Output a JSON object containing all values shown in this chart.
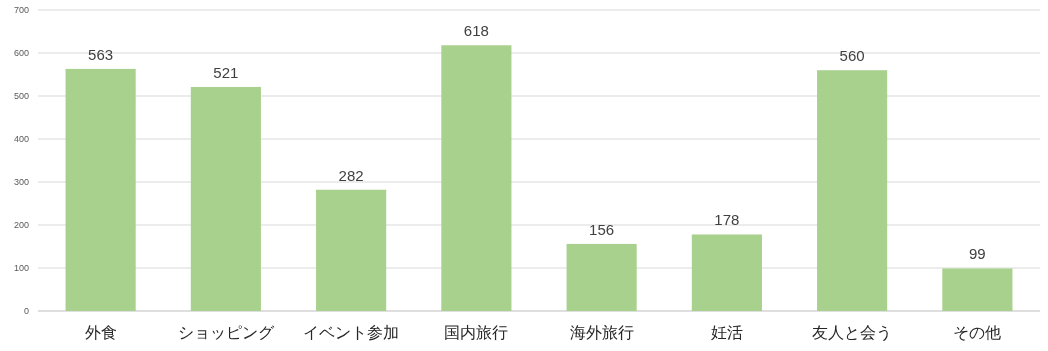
{
  "chart_data": {
    "type": "bar",
    "categories": [
      "外食",
      "ショッピング",
      "イベント参加",
      "国内旅行",
      "海外旅行",
      "妊活",
      "友人と会う",
      "その他"
    ],
    "values": [
      563,
      521,
      282,
      618,
      156,
      178,
      560,
      99
    ],
    "color": "#a9d18e",
    "ylim": [
      0,
      700
    ],
    "yticks": [
      0,
      100,
      200,
      300,
      400,
      500,
      600,
      700
    ],
    "grid": "y",
    "data_labels": true
  }
}
